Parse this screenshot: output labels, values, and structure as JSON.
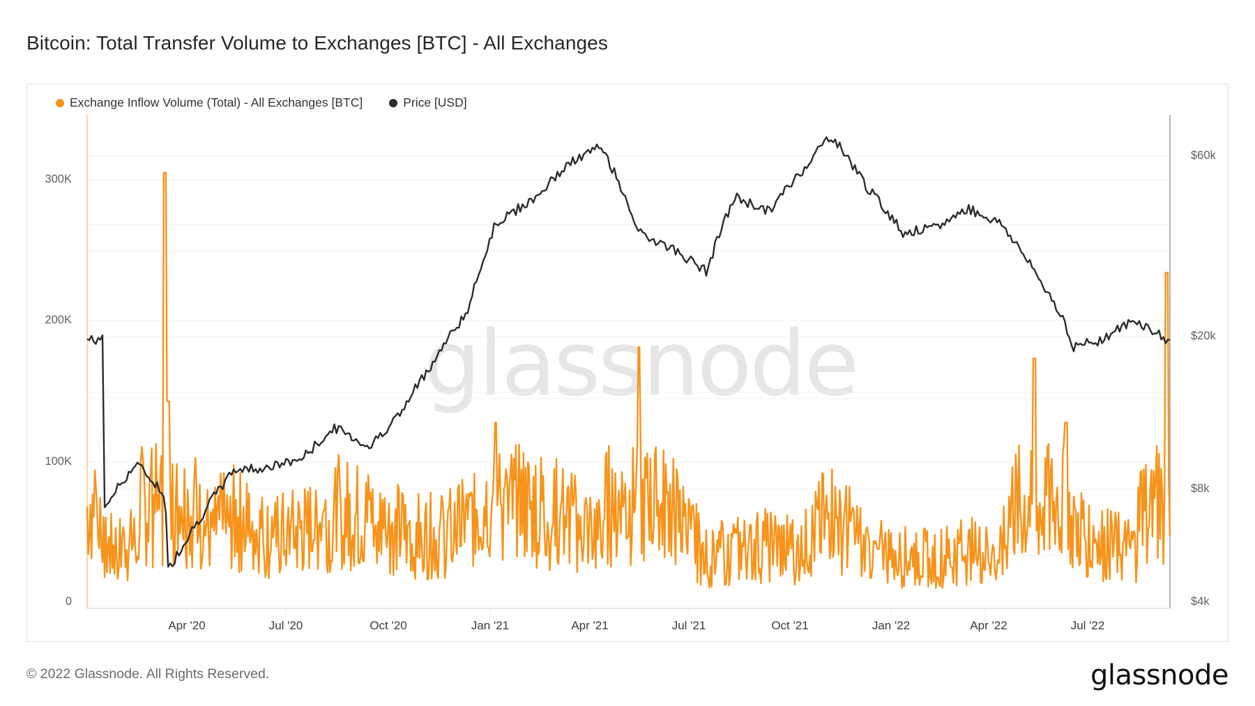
{
  "title": "Bitcoin: Total Transfer Volume to Exchanges [BTC] - All Exchanges",
  "legend": [
    {
      "label": "Exchange Inflow Volume (Total) - All Exchanges [BTC]",
      "color": "#f7931a"
    },
    {
      "label": "Price [USD]",
      "color": "#2b2b2b"
    }
  ],
  "axes": {
    "left": [
      {
        "label": "300K",
        "value": 300000
      },
      {
        "label": "200K",
        "value": 200000
      },
      {
        "label": "100K",
        "value": 100000
      },
      {
        "label": "0",
        "value": 0
      }
    ],
    "right": [
      {
        "label": "$60k",
        "value": 60000
      },
      {
        "label": "$20k",
        "value": 20000
      },
      {
        "label": "$8k",
        "value": 8000
      },
      {
        "label": "$4k",
        "value": 4000
      }
    ],
    "x": [
      "Apr '20",
      "Jul '20",
      "Oct '20",
      "Jan '21",
      "Apr '21",
      "Jul '21",
      "Oct '21",
      "Jan '22",
      "Apr '22",
      "Jul '22"
    ]
  },
  "watermark": "glassnode",
  "footer": {
    "copyright": "© 2022 Glassnode. All Rights Reserved.",
    "logo": "glassnode"
  },
  "colors": {
    "volume": "#f7931a",
    "price": "#2b2b2b",
    "grid": "#f0f0f0",
    "left_axis_line": "#f8c98a",
    "right_axis_line": "#9a9a9a"
  },
  "chart_data": {
    "type": "line",
    "title": "Bitcoin: Total Transfer Volume to Exchanges [BTC] - All Exchanges",
    "xlabel": "",
    "ylabel_left": "Exchange Inflow Volume (Total) - All Exchanges [BTC]",
    "ylabel_right": "Price [USD]",
    "y_left_range": [
      0,
      340000
    ],
    "y_right_range": [
      4000,
      75000
    ],
    "y_right_scale": "log",
    "x_range": [
      "2020-01-01",
      "2022-09-16"
    ],
    "legend_position": "top-left",
    "grid": true,
    "x": [
      "2020-01",
      "2020-02",
      "2020-03-12",
      "2020-03-15",
      "2020-04",
      "2020-05",
      "2020-06",
      "2020-07",
      "2020-08",
      "2020-09",
      "2020-10",
      "2020-11",
      "2020-12",
      "2021-01-08",
      "2021-02",
      "2021-03",
      "2021-04-14",
      "2021-05-19",
      "2021-06",
      "2021-07-20",
      "2021-08",
      "2021-09",
      "2021-10",
      "2021-11-10",
      "2021-12",
      "2022-01",
      "2022-02",
      "2022-03",
      "2022-04",
      "2022-05",
      "2022-06-13",
      "2022-06-18",
      "2022-07",
      "2022-08",
      "2022-09-13"
    ],
    "series": [
      {
        "name": "Exchange Inflow Volume (Total) - All Exchanges [BTC]",
        "axis": "left",
        "values": [
          45000,
          50000,
          305000,
          145000,
          60000,
          70000,
          55000,
          60000,
          75000,
          70000,
          60000,
          55000,
          65000,
          130000,
          80000,
          70000,
          60000,
          183000,
          80000,
          40000,
          45000,
          50000,
          45000,
          75000,
          45000,
          40000,
          40000,
          45000,
          40000,
          175000,
          130000,
          70000,
          50000,
          45000,
          235000
        ]
      },
      {
        "name": "Price [USD]",
        "axis": "right",
        "values": [
          7200,
          9500,
          7900,
          5000,
          7000,
          9200,
          9300,
          9800,
          11800,
          10500,
          13000,
          18000,
          24000,
          40000,
          47000,
          57000,
          63500,
          38000,
          35000,
          30000,
          47000,
          43000,
          55000,
          68000,
          49000,
          38000,
          39000,
          44000,
          40000,
          30000,
          22000,
          19000,
          20000,
          22500,
          20000
        ]
      }
    ],
    "annotations": [
      "glassnode watermark"
    ]
  }
}
